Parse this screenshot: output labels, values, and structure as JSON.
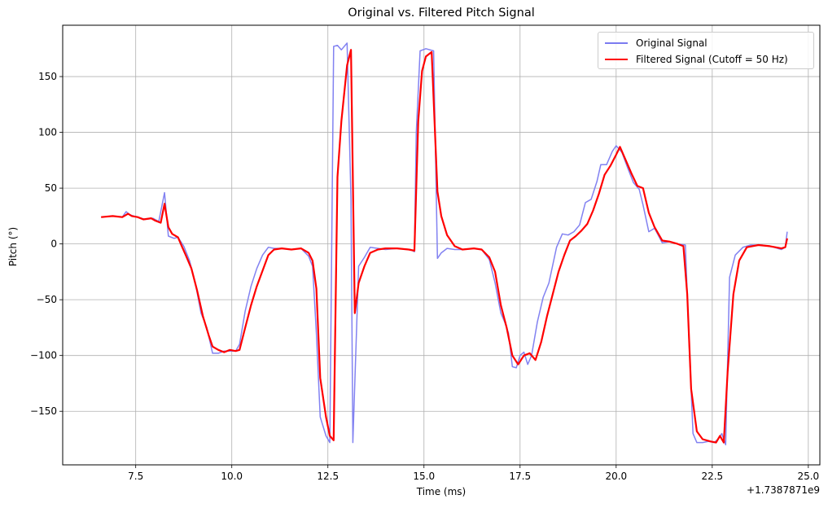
{
  "chart_data": {
    "type": "line",
    "title": "Original vs. Filtered Pitch Signal",
    "xlabel": "Time (ms)",
    "ylabel": "Pitch (°)",
    "x_offset_label": "+1.7387871e9",
    "xlim": [
      5.6,
      25.3
    ],
    "ylim": [
      -198,
      196
    ],
    "xticks": [
      7.5,
      10.0,
      12.5,
      15.0,
      17.5,
      20.0,
      22.5,
      25.0
    ],
    "xtick_labels": [
      "7.5",
      "10.0",
      "12.5",
      "15.0",
      "17.5",
      "20.0",
      "22.5",
      "25.0"
    ],
    "yticks": [
      -150,
      -100,
      -50,
      0,
      50,
      100,
      150
    ],
    "ytick_labels": [
      "−150",
      "−100",
      "−50",
      "0",
      "50",
      "100",
      "150"
    ],
    "grid": true,
    "legend_position": "top-right",
    "series": [
      {
        "name": "Original Signal",
        "color": "#7b7bf0",
        "x": [
          6.6,
          6.9,
          7.15,
          7.25,
          7.35,
          7.55,
          7.75,
          7.95,
          8.1,
          8.25,
          8.35,
          8.5,
          8.6,
          8.75,
          8.9,
          9.05,
          9.2,
          9.35,
          9.5,
          9.65,
          9.8,
          9.95,
          10.1,
          10.2,
          10.35,
          10.5,
          10.65,
          10.8,
          10.95,
          11.1,
          11.3,
          11.55,
          11.8,
          12.0,
          12.1,
          12.2,
          12.3,
          12.45,
          12.55,
          12.65,
          12.75,
          12.85,
          13.0,
          13.1,
          13.15,
          13.3,
          13.45,
          13.6,
          13.8,
          14.0,
          14.3,
          14.65,
          14.75,
          14.8,
          14.9,
          15.05,
          15.25,
          15.35,
          15.45,
          15.6,
          15.8,
          16.0,
          16.3,
          16.5,
          16.7,
          16.85,
          17.0,
          17.1,
          17.2,
          17.3,
          17.4,
          17.5,
          17.6,
          17.7,
          17.8,
          17.95,
          18.1,
          18.25,
          18.45,
          18.6,
          18.75,
          18.9,
          19.05,
          19.2,
          19.35,
          19.5,
          19.6,
          19.75,
          19.9,
          20.0,
          20.15,
          20.3,
          20.45,
          20.6,
          20.7,
          20.85,
          21.0,
          21.2,
          21.4,
          21.6,
          21.8,
          21.9,
          22.0,
          22.1,
          22.25,
          22.4,
          22.55,
          22.65,
          22.75,
          22.85,
          22.95,
          23.1,
          23.3,
          23.5,
          23.8,
          24.1,
          24.3,
          24.4,
          24.45
        ],
        "y": [
          24,
          25,
          24,
          29,
          26,
          24,
          22,
          23,
          20,
          46,
          7,
          5,
          6,
          -2,
          -15,
          -35,
          -62,
          -75,
          -98,
          -98,
          -96,
          -96,
          -96,
          -90,
          -60,
          -38,
          -22,
          -10,
          -3,
          -4,
          -4,
          -5,
          -4,
          -11,
          -20,
          -80,
          -155,
          -172,
          -178,
          177,
          178,
          174,
          180,
          40,
          -178,
          -20,
          -12,
          -3,
          -4,
          -5,
          -4,
          -5,
          -7,
          100,
          173,
          175,
          173,
          -13,
          -8,
          -4,
          -5,
          -5,
          -4,
          -5,
          -14,
          -35,
          -62,
          -70,
          -80,
          -110,
          -111,
          -100,
          -97,
          -108,
          -100,
          -70,
          -48,
          -35,
          -3,
          9,
          8,
          11,
          17,
          37,
          40,
          56,
          71,
          71,
          83,
          88,
          82,
          68,
          55,
          49,
          35,
          11,
          14,
          1,
          2,
          0,
          -1,
          -90,
          -170,
          -178,
          -178,
          -177,
          -178,
          -175,
          -170,
          -180,
          -30,
          -10,
          -3,
          -1,
          -1,
          -3,
          -5,
          -3,
          11
        ]
      },
      {
        "name": "Filtered Signal (Cutoff = 50 Hz)",
        "color": "#ff0000",
        "x": [
          6.6,
          6.9,
          7.15,
          7.3,
          7.4,
          7.55,
          7.7,
          7.9,
          8.0,
          8.15,
          8.25,
          8.35,
          8.45,
          8.6,
          8.7,
          8.8,
          8.95,
          9.1,
          9.25,
          9.4,
          9.5,
          9.65,
          9.8,
          9.95,
          10.1,
          10.2,
          10.35,
          10.5,
          10.65,
          10.8,
          10.95,
          11.1,
          11.3,
          11.55,
          11.8,
          12.0,
          12.1,
          12.2,
          12.3,
          12.45,
          12.55,
          12.65,
          12.75,
          12.85,
          13.0,
          13.1,
          13.2,
          13.3,
          13.45,
          13.6,
          13.8,
          14.0,
          14.3,
          14.6,
          14.75,
          14.85,
          14.95,
          15.05,
          15.2,
          15.35,
          15.45,
          15.6,
          15.8,
          16.0,
          16.3,
          16.5,
          16.7,
          16.85,
          17.0,
          17.15,
          17.3,
          17.45,
          17.6,
          17.75,
          17.9,
          18.05,
          18.2,
          18.35,
          18.5,
          18.65,
          18.8,
          18.95,
          19.1,
          19.25,
          19.4,
          19.55,
          19.7,
          19.85,
          20.0,
          20.1,
          20.25,
          20.4,
          20.55,
          20.7,
          20.85,
          21.0,
          21.2,
          21.4,
          21.6,
          21.75,
          21.85,
          21.95,
          22.1,
          22.25,
          22.45,
          22.6,
          22.7,
          22.8,
          22.9,
          23.05,
          23.2,
          23.4,
          23.7,
          24.0,
          24.3,
          24.4,
          24.45
        ],
        "y": [
          24,
          25,
          24,
          27,
          25,
          24,
          22,
          23,
          21,
          19,
          36,
          15,
          9,
          6,
          -2,
          -10,
          -22,
          -42,
          -65,
          -82,
          -92,
          -95,
          -97,
          -95,
          -96,
          -95,
          -75,
          -55,
          -38,
          -24,
          -10,
          -5,
          -4,
          -5,
          -4,
          -8,
          -15,
          -40,
          -120,
          -155,
          -172,
          -176,
          60,
          110,
          160,
          174,
          -62,
          -35,
          -20,
          -8,
          -5,
          -4,
          -4,
          -5,
          -6,
          110,
          155,
          168,
          172,
          47,
          25,
          8,
          -2,
          -5,
          -4,
          -5,
          -12,
          -25,
          -55,
          -75,
          -100,
          -108,
          -100,
          -98,
          -104,
          -88,
          -65,
          -45,
          -25,
          -10,
          3,
          7,
          12,
          18,
          30,
          45,
          62,
          70,
          80,
          87,
          75,
          63,
          52,
          50,
          28,
          15,
          3,
          2,
          0,
          -2,
          -45,
          -130,
          -168,
          -175,
          -177,
          -178,
          -172,
          -178,
          -115,
          -45,
          -15,
          -3,
          -1,
          -2,
          -4,
          -3,
          5
        ]
      }
    ]
  }
}
